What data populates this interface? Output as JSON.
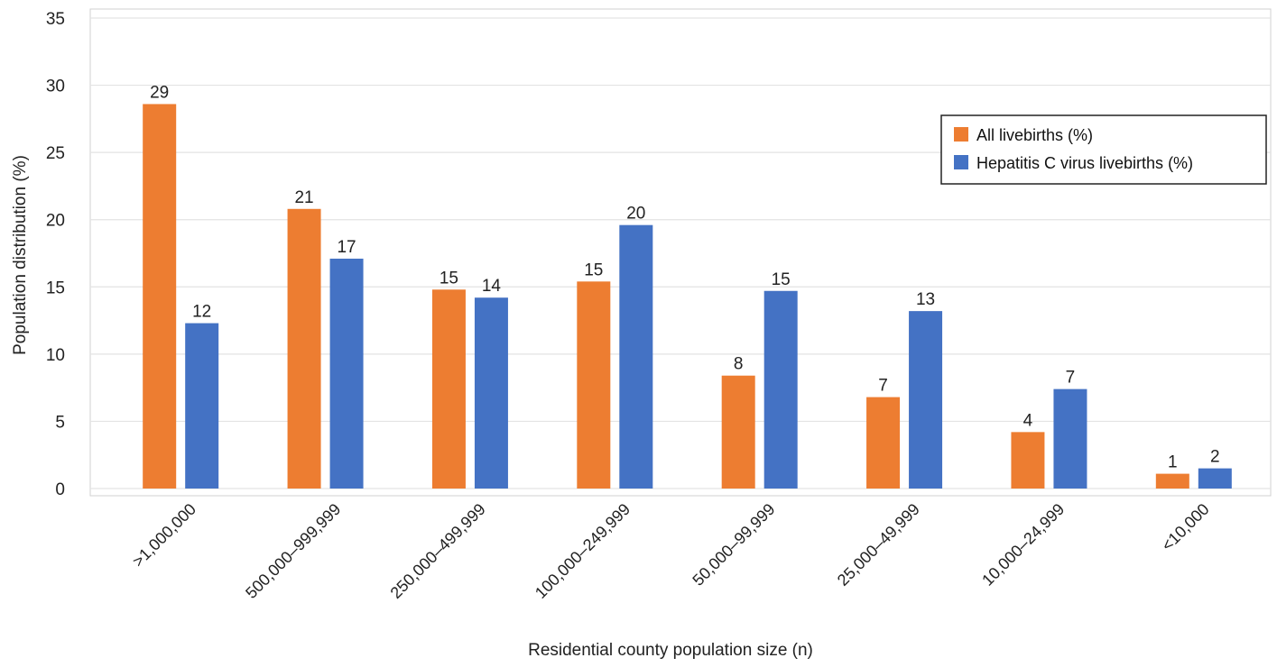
{
  "chart_data": {
    "type": "bar",
    "title": "",
    "xlabel": "Residential county population size (n)",
    "ylabel": "Population distribution (%)",
    "ylim": [
      0,
      35
    ],
    "yticks": [
      0,
      5,
      10,
      15,
      20,
      25,
      30,
      35
    ],
    "grid": true,
    "legend_position": "top-right",
    "categories": [
      ">1,000,000",
      "500,000–999,999",
      "250,000–499,999",
      "100,000–249,999",
      "50,000–99,999",
      "25,000–49,999",
      "10,000–24,999",
      "<10,000"
    ],
    "series": [
      {
        "name": "All livebirths (%)",
        "color": "#ED7D31",
        "values": [
          28.6,
          20.8,
          14.8,
          15.4,
          8.4,
          6.8,
          4.2,
          1.1
        ],
        "labels": [
          "29",
          "21",
          "15",
          "15",
          "8",
          "7",
          "4",
          "1"
        ]
      },
      {
        "name": "Hepatitis C virus livebirths (%)",
        "color": "#4472C4",
        "values": [
          12.3,
          17.1,
          14.2,
          19.6,
          14.7,
          13.2,
          7.4,
          1.5
        ],
        "labels": [
          "12",
          "17",
          "14",
          "20",
          "15",
          "13",
          "7",
          "2"
        ]
      }
    ]
  }
}
